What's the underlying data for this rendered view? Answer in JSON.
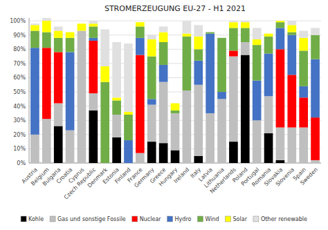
{
  "chart_data": {
    "type": "bar",
    "stacked": true,
    "title": "STROMERZEUGUNG EU-27 - H1 2021",
    "categories": [
      "Austria",
      "Belgium",
      "Bulgaria",
      "Croatia",
      "Cyprus",
      "Czech Republic",
      "Denmark",
      "Estonia",
      "Finland",
      "France",
      "Germany",
      "Greece",
      "Hungary",
      "Ireland",
      "Italy",
      "Latvia",
      "Lithuania",
      "Netherlands",
      "Poland",
      "Portugal",
      "Romania",
      "Slovakia",
      "Slovenia",
      "Spain",
      "Sweden"
    ],
    "series": [
      {
        "name": "Kohle",
        "color": "#000000",
        "values": [
          0,
          0,
          26,
          0,
          0,
          37,
          0,
          18,
          0,
          0,
          15,
          14,
          9,
          0,
          5,
          0,
          0,
          15,
          76,
          0,
          21,
          2,
          0,
          0,
          0
        ]
      },
      {
        "name": "Gas und sonstige Fossile",
        "color": "#bfbfbf",
        "values": [
          20,
          31,
          16,
          23,
          93,
          12,
          0,
          16,
          0,
          7,
          26,
          43,
          26,
          51,
          50,
          35,
          45,
          60,
          9,
          30,
          26,
          23,
          25,
          25,
          2
        ]
      },
      {
        "name": "Nuclear",
        "color": "#ff0000",
        "values": [
          0,
          50,
          36,
          0,
          0,
          37,
          0,
          0,
          0,
          69,
          0,
          0,
          0,
          0,
          0,
          0,
          0,
          4,
          0,
          0,
          0,
          55,
          37,
          21,
          30
        ]
      },
      {
        "name": "Hydro",
        "color": "#4472c4",
        "values": [
          61,
          0,
          0,
          55,
          0,
          2,
          0,
          0,
          16,
          12,
          4,
          12,
          0,
          0,
          17,
          56,
          5,
          0,
          0,
          28,
          30,
          15,
          28,
          8,
          41
        ]
      },
      {
        "name": "Wind",
        "color": "#70ad47",
        "values": [
          12,
          11,
          10,
          10,
          0,
          8,
          57,
          10,
          18,
          8,
          30,
          16,
          2,
          38,
          8,
          1,
          38,
          16,
          10,
          25,
          12,
          4,
          2,
          25,
          17
        ]
      },
      {
        "name": "Solar",
        "color": "#ffff00",
        "values": [
          4,
          8,
          5,
          4,
          5,
          2,
          11,
          2,
          2,
          3,
          12,
          7,
          5,
          2,
          9,
          0,
          0,
          4,
          4,
          4,
          2,
          1,
          5,
          9,
          0
        ]
      },
      {
        "name": "Other renewable",
        "color": "#e0e0e0",
        "values": [
          1,
          2,
          3,
          0,
          0,
          2,
          26,
          39,
          48,
          0,
          3,
          4,
          0,
          9,
          8,
          0,
          0,
          1,
          1,
          8,
          0,
          0,
          3,
          5,
          5
        ]
      }
    ],
    "ylim": [
      0,
      102
    ],
    "yticks": [
      {
        "value": 0,
        "label": "0%"
      },
      {
        "value": 10,
        "label": "10%"
      },
      {
        "value": 20,
        "label": "20%"
      },
      {
        "value": 30,
        "label": "30%"
      },
      {
        "value": 40,
        "label": "40%"
      },
      {
        "value": 50,
        "label": "50%"
      },
      {
        "value": 60,
        "label": "60%"
      },
      {
        "value": 70,
        "label": "70%"
      },
      {
        "value": 80,
        "label": "80%"
      },
      {
        "value": 90,
        "label": "90%"
      },
      {
        "value": 100,
        "label": "100%"
      }
    ],
    "grid": true,
    "legend": "bottom"
  }
}
